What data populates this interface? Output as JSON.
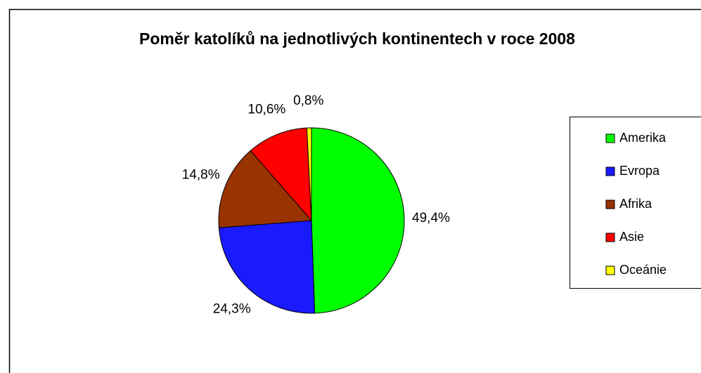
{
  "chart_data": {
    "type": "pie",
    "title": "Poměr katolíků na jednotlivých kontinentech v roce 2008",
    "categories": [
      "Amerika",
      "Evropa",
      "Afrika",
      "Asie",
      "Oceánie"
    ],
    "values": [
      49.4,
      24.3,
      14.8,
      10.6,
      0.8
    ],
    "value_labels": [
      "49,4%",
      "24,3%",
      "14,8%",
      "10,6%",
      "0,8%"
    ],
    "colors": [
      "#00ff00",
      "#1a1aff",
      "#993300",
      "#ff0000",
      "#ffff00"
    ],
    "legend": "right"
  }
}
